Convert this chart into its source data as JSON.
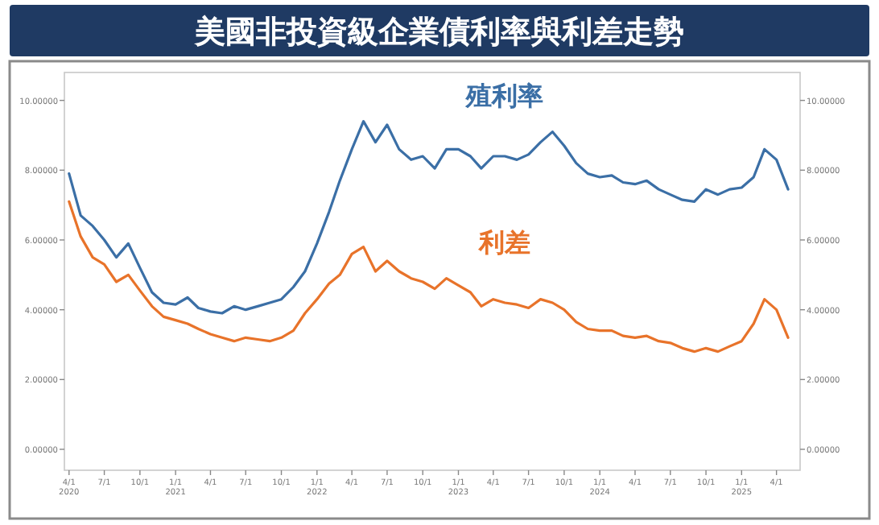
{
  "chart_data": {
    "type": "line",
    "title": "美國非投資級企業債利率與利差走勢",
    "x": [
      "2020-04",
      "2020-05",
      "2020-06",
      "2020-07",
      "2020-08",
      "2020-09",
      "2020-10",
      "2020-11",
      "2020-12",
      "2021-01",
      "2021-02",
      "2021-03",
      "2021-04",
      "2021-05",
      "2021-06",
      "2021-07",
      "2021-08",
      "2021-09",
      "2021-10",
      "2021-11",
      "2021-12",
      "2022-01",
      "2022-02",
      "2022-03",
      "2022-04",
      "2022-05",
      "2022-06",
      "2022-07",
      "2022-08",
      "2022-09",
      "2022-10",
      "2022-11",
      "2022-12",
      "2023-01",
      "2023-02",
      "2023-03",
      "2023-04",
      "2023-05",
      "2023-06",
      "2023-07",
      "2023-08",
      "2023-09",
      "2023-10",
      "2023-11",
      "2023-12",
      "2024-01",
      "2024-02",
      "2024-03",
      "2024-04",
      "2024-05",
      "2024-06",
      "2024-07",
      "2024-08",
      "2024-09",
      "2024-10",
      "2024-11",
      "2024-12",
      "2025-01",
      "2025-02",
      "2025-03",
      "2025-04",
      "2025-05"
    ],
    "series": [
      {
        "name": "殖利率",
        "color": "#3b6fa6",
        "values": [
          7.9,
          6.7,
          6.4,
          6.0,
          5.5,
          5.9,
          5.2,
          4.5,
          4.2,
          4.15,
          4.35,
          4.05,
          3.95,
          3.9,
          4.1,
          4.0,
          4.1,
          4.2,
          4.3,
          4.65,
          5.1,
          5.9,
          6.8,
          7.7,
          8.6,
          9.4,
          8.8,
          9.3,
          8.6,
          8.3,
          8.4,
          8.05,
          8.6,
          8.6,
          8.4,
          8.05,
          8.4,
          8.4,
          8.3,
          8.45,
          8.8,
          9.1,
          8.7,
          8.2,
          7.9,
          7.8,
          7.85,
          7.65,
          7.6,
          7.7,
          7.45,
          7.3,
          7.15,
          7.1,
          7.45,
          7.3,
          7.45,
          7.5,
          7.8,
          8.6,
          8.3,
          7.45
        ]
      },
      {
        "name": "利差",
        "color": "#e8732a",
        "values": [
          7.1,
          6.1,
          5.5,
          5.3,
          4.8,
          5.0,
          4.55,
          4.1,
          3.8,
          3.7,
          3.6,
          3.45,
          3.3,
          3.2,
          3.1,
          3.2,
          3.15,
          3.1,
          3.2,
          3.4,
          3.9,
          4.3,
          4.75,
          5.0,
          5.6,
          5.8,
          5.1,
          5.4,
          5.1,
          4.9,
          4.8,
          4.6,
          4.9,
          4.7,
          4.5,
          4.1,
          4.3,
          4.2,
          4.15,
          4.05,
          4.3,
          4.2,
          4.0,
          3.65,
          3.45,
          3.4,
          3.4,
          3.25,
          3.2,
          3.25,
          3.1,
          3.05,
          2.9,
          2.8,
          2.9,
          2.8,
          2.95,
          3.1,
          3.6,
          4.3,
          4.0,
          3.2
        ]
      }
    ],
    "xlim": [
      "2020-03-20",
      "2025-06-01"
    ],
    "xticks": [
      {
        "value": "2020-04-01",
        "label": "4/1\n2020"
      },
      {
        "value": "2020-07-01",
        "label": "7/1"
      },
      {
        "value": "2020-10-01",
        "label": "10/1"
      },
      {
        "value": "2021-01-01",
        "label": "1/1\n2021"
      },
      {
        "value": "2021-04-01",
        "label": "4/1"
      },
      {
        "value": "2021-07-01",
        "label": "7/1"
      },
      {
        "value": "2021-10-01",
        "label": "10/1"
      },
      {
        "value": "2022-01-01",
        "label": "1/1\n2022"
      },
      {
        "value": "2022-04-01",
        "label": "4/1"
      },
      {
        "value": "2022-07-01",
        "label": "7/1"
      },
      {
        "value": "2022-10-01",
        "label": "10/1"
      },
      {
        "value": "2023-01-01",
        "label": "1/1\n2023"
      },
      {
        "value": "2023-04-01",
        "label": "4/1"
      },
      {
        "value": "2023-07-01",
        "label": "7/1"
      },
      {
        "value": "2023-10-01",
        "label": "10/1"
      },
      {
        "value": "2024-01-01",
        "label": "1/1\n2024"
      },
      {
        "value": "2024-04-01",
        "label": "4/1"
      },
      {
        "value": "2024-07-01",
        "label": "7/1"
      },
      {
        "value": "2024-10-01",
        "label": "10/1"
      },
      {
        "value": "2025-01-01",
        "label": "1/1\n2025"
      },
      {
        "value": "2025-04-01",
        "label": "4/1"
      }
    ],
    "ylim": [
      -0.6,
      10.8
    ],
    "yticks": [
      {
        "value": 0,
        "label": "0.00000"
      },
      {
        "value": 2,
        "label": "2.00000"
      },
      {
        "value": 4,
        "label": "4.00000"
      },
      {
        "value": 6,
        "label": "6.00000"
      },
      {
        "value": 8,
        "label": "8.00000"
      },
      {
        "value": 10,
        "label": "10.00000"
      }
    ],
    "y2lim": [
      -0.6,
      10.8
    ],
    "y2ticks": [
      {
        "value": 0,
        "label": "0.00000"
      },
      {
        "value": 2,
        "label": "2.00000"
      },
      {
        "value": 4,
        "label": "4.00000"
      },
      {
        "value": 6,
        "label": "6.00000"
      },
      {
        "value": 8,
        "label": "8.00000"
      },
      {
        "value": 10,
        "label": "10.00000"
      }
    ],
    "grid": false,
    "legend": false,
    "marker": "none",
    "line_style": "solid"
  }
}
